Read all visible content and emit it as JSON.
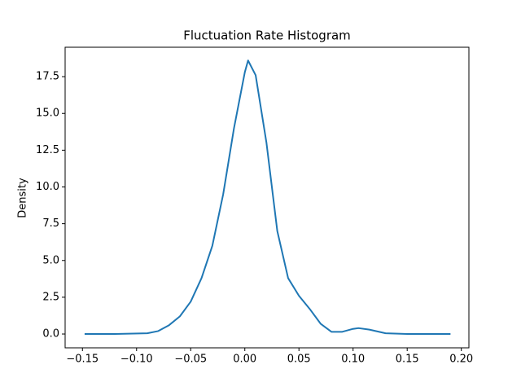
{
  "chart_data": {
    "type": "line",
    "title": "Fluctuation Rate Histogram",
    "y_label": "Density",
    "color": "#1f77b4",
    "grid": false,
    "x": [
      -0.148,
      -0.12,
      -0.09,
      -0.08,
      -0.07,
      -0.06,
      -0.05,
      -0.04,
      -0.03,
      -0.02,
      -0.01,
      0,
      0.003,
      0.01,
      0.02,
      0.03,
      0.04,
      0.05,
      0.06,
      0.07,
      0.08,
      0.09,
      0.1,
      0.105,
      0.115,
      0.13,
      0.15,
      0.19
    ],
    "values": [
      0,
      0,
      0.05,
      0.2,
      0.6,
      1.2,
      2.2,
      3.8,
      6.0,
      9.5,
      14.0,
      17.8,
      18.6,
      17.6,
      13.0,
      7.0,
      3.8,
      2.6,
      1.7,
      0.7,
      0.15,
      0.15,
      0.35,
      0.4,
      0.3,
      0.05,
      0,
      0
    ],
    "xlim": [
      -0.166,
      0.207
    ],
    "xticks": [
      {
        "value": -0.15,
        "label": "−0.15"
      },
      {
        "value": -0.1,
        "label": "−0.10"
      },
      {
        "value": -0.05,
        "label": "−0.05"
      },
      {
        "value": 0,
        "label": "0.00"
      },
      0.05,
      {
        "value": 0.1,
        "label": "0.10"
      },
      0.15,
      {
        "value": 0.2,
        "label": "0.20"
      }
    ],
    "ylim": [
      -0.94,
      19.5
    ],
    "yticks": [
      {
        "value": 0,
        "label": "0.0"
      },
      2.5,
      {
        "value": 5,
        "label": "5.0"
      },
      7.5,
      {
        "value": 10,
        "label": "10.0"
      },
      12.5,
      {
        "value": 15,
        "label": "15.0"
      },
      17.5
    ]
  }
}
